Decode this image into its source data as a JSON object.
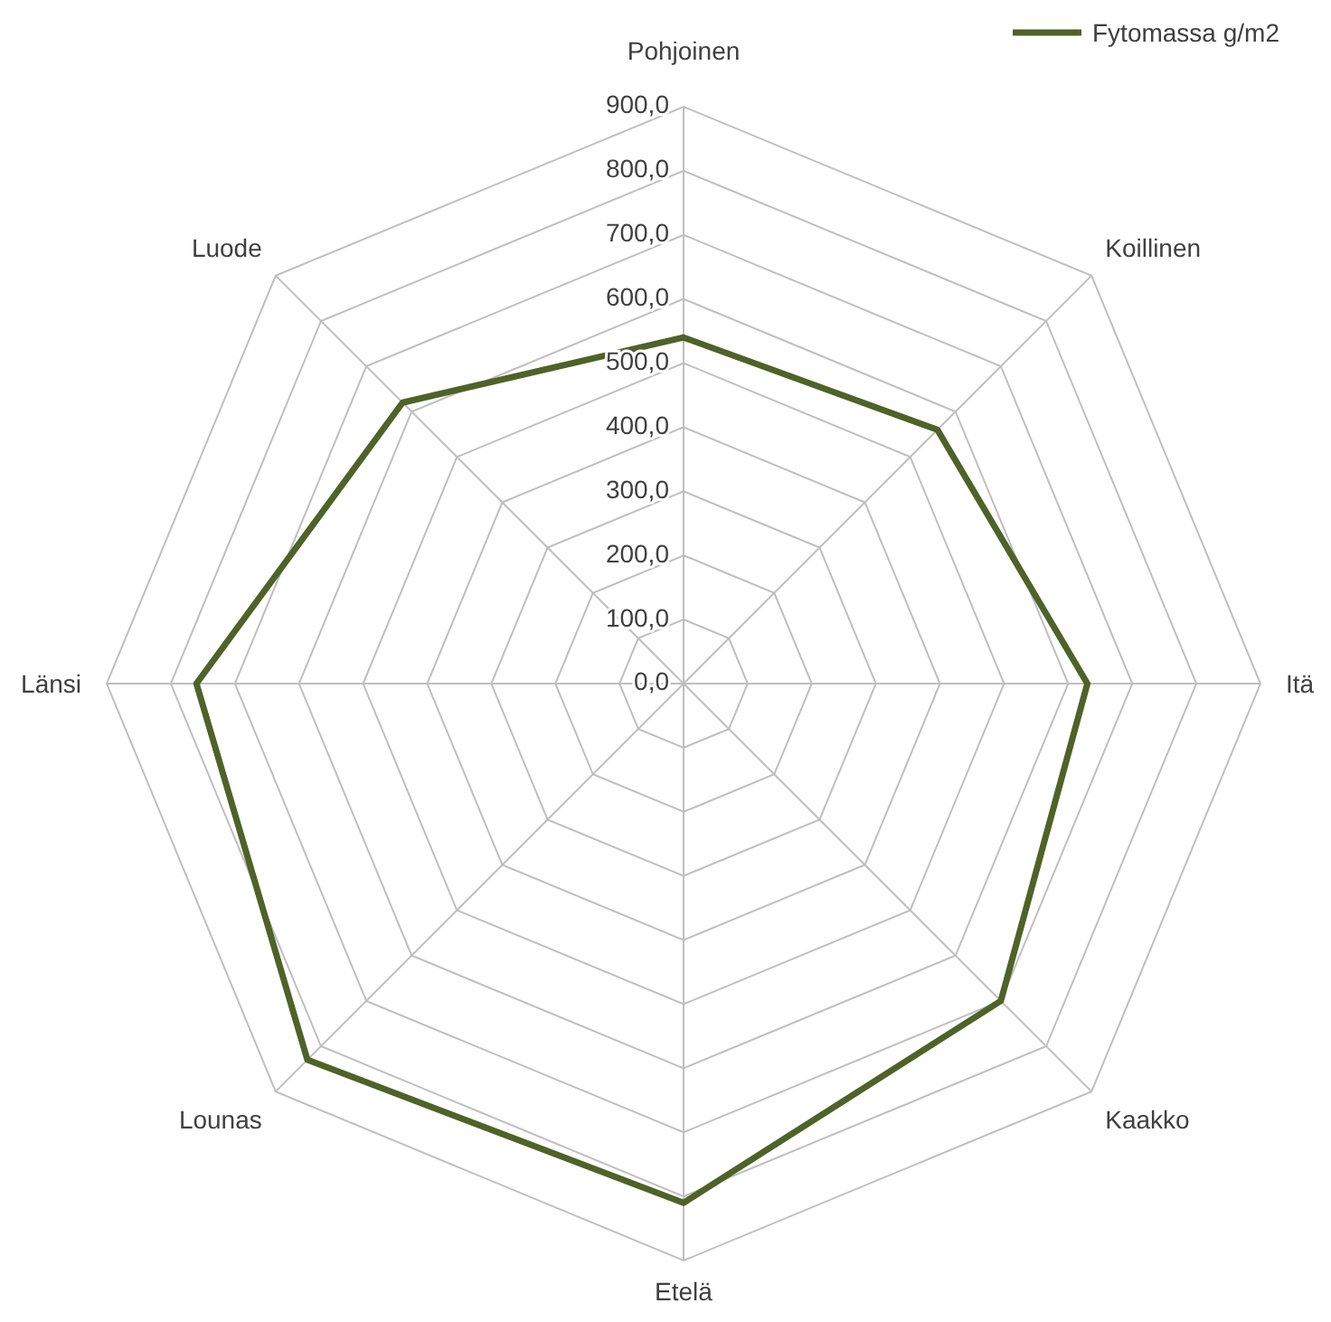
{
  "chart_data": {
    "type": "radar",
    "categories": [
      "Pohjoinen",
      "Koillinen",
      "Itä",
      "Kaakko",
      "Etelä",
      "Lounas",
      "Länsi",
      "Luode"
    ],
    "series": [
      {
        "name": "Fytomassa g/m2",
        "color": "#4f6228",
        "values": [
          540,
          560,
          630,
          700,
          810,
          830,
          760,
          620
        ]
      }
    ],
    "ylim": [
      0,
      900
    ],
    "yticks": [
      {
        "value": 0,
        "label": "0,0"
      },
      {
        "value": 100,
        "label": "100,0"
      },
      {
        "value": 200,
        "label": "200,0"
      },
      {
        "value": 300,
        "label": "300,0"
      },
      {
        "value": 400,
        "label": "400,0"
      },
      {
        "value": 500,
        "label": "500,0"
      },
      {
        "value": 600,
        "label": "600,0"
      },
      {
        "value": 700,
        "label": "700,0"
      },
      {
        "value": 800,
        "label": "800,0"
      },
      {
        "value": 900,
        "label": "900,0"
      }
    ],
    "grid": true,
    "legend": "top right",
    "marker": "none",
    "line_style": "solid"
  }
}
